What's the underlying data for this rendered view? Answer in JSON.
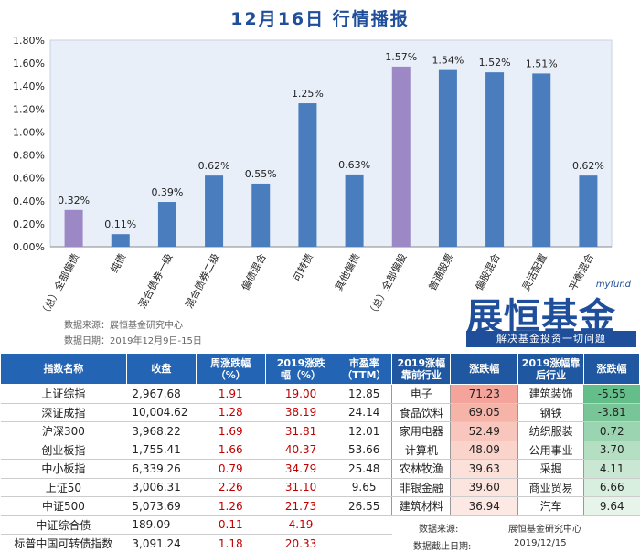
{
  "title": "12月16日  行情播报",
  "chart_data": {
    "type": "bar",
    "categories": [
      "（总）全部偏债",
      "纯债",
      "混合债券一级",
      "混合债券二级",
      "偏债混合",
      "可转债",
      "其他偏债",
      "（总）全部偏股",
      "普通股票",
      "偏股混合",
      "灵活配置",
      "平衡混合"
    ],
    "values": [
      0.32,
      0.11,
      0.39,
      0.62,
      0.55,
      1.25,
      0.63,
      1.57,
      1.54,
      1.52,
      1.51,
      0.62
    ],
    "value_labels": [
      "0.32%",
      "0.11%",
      "0.39%",
      "0.62%",
      "0.55%",
      "1.25%",
      "0.63%",
      "1.57%",
      "1.54%",
      "1.52%",
      "1.51%",
      "0.62%"
    ],
    "highlight_indices": [
      0,
      7
    ],
    "colors": {
      "normal": "#4a7dbe",
      "highlight": "#9c88c4",
      "plot_bg": "#e9eff8"
    },
    "ylim": [
      0,
      1.8
    ],
    "yticks": [
      "0.00%",
      "0.20%",
      "0.40%",
      "0.60%",
      "0.80%",
      "1.00%",
      "1.20%",
      "1.40%",
      "1.60%",
      "1.80%"
    ],
    "xlabel": "",
    "ylabel": "",
    "grid": false
  },
  "source": {
    "line1": "数据来源：展恒基金研究中心",
    "line2": "数据日期：2019年12月9日-15日"
  },
  "logo": {
    "brand": "展恒基金",
    "tag": "myfund",
    "slogan": "解决基金投资一切问题"
  },
  "table": {
    "headers": [
      "指数名称",
      "收盘",
      "周涨跌幅\n（%）",
      "2019涨跌\n幅（%）",
      "市盈率\n（TTM）",
      "2019涨幅\n靠前行业",
      "涨跌幅",
      "2019涨幅靠\n后行业",
      "涨跌幅"
    ],
    "rows": [
      {
        "name": "上证综指",
        "close": "2,967.68",
        "wk": "1.91",
        "yr": "19.00",
        "pe": "12.85",
        "top_ind": "电子",
        "top_val": "71.23",
        "bot_ind": "建筑装饰",
        "bot_val": "-5.55"
      },
      {
        "name": "深证成指",
        "close": "10,004.62",
        "wk": "1.28",
        "yr": "38.19",
        "pe": "24.14",
        "top_ind": "食品饮料",
        "top_val": "69.05",
        "bot_ind": "钢铁",
        "bot_val": "-3.81"
      },
      {
        "name": "沪深300",
        "close": "3,968.22",
        "wk": "1.69",
        "yr": "31.81",
        "pe": "12.01",
        "top_ind": "家用电器",
        "top_val": "52.49",
        "bot_ind": "纺织服装",
        "bot_val": "0.72"
      },
      {
        "name": "创业板指",
        "close": "1,755.41",
        "wk": "1.66",
        "yr": "40.37",
        "pe": "53.66",
        "top_ind": "计算机",
        "top_val": "48.09",
        "bot_ind": "公用事业",
        "bot_val": "3.70"
      },
      {
        "name": "中小板指",
        "close": "6,339.26",
        "wk": "0.79",
        "yr": "34.79",
        "pe": "25.48",
        "top_ind": "农林牧渔",
        "top_val": "39.63",
        "bot_ind": "采掘",
        "bot_val": "4.11"
      },
      {
        "name": "上证50",
        "close": "3,006.31",
        "wk": "2.26",
        "yr": "31.10",
        "pe": "9.65",
        "top_ind": "非银金融",
        "top_val": "39.60",
        "bot_ind": "商业贸易",
        "bot_val": "6.66"
      },
      {
        "name": "中证500",
        "close": "5,073.69",
        "wk": "1.26",
        "yr": "21.73",
        "pe": "26.55",
        "top_ind": "建筑材料",
        "top_val": "36.94",
        "bot_ind": "汽车",
        "bot_val": "9.64"
      },
      {
        "name": "中证综合债",
        "close": "189.09",
        "wk": "0.11",
        "yr": "4.19",
        "pe": ""
      },
      {
        "name": "标普中国可转债指数",
        "close": "3,091.24",
        "wk": "1.18",
        "yr": "20.33",
        "pe": ""
      }
    ],
    "top_colors": [
      "#f4a49a",
      "#f6b3a8",
      "#f8c6bc",
      "#fad3ca",
      "#fbe1d9",
      "#fce5de",
      "#fde9e3"
    ],
    "bot_colors": [
      "#63be8a",
      "#78c697",
      "#9ad4b0",
      "#b5dfc3",
      "#c9e7d3",
      "#d8eede",
      "#e6f4ea"
    ],
    "note_label1": "数据来源:",
    "note_value1": "展恒基金研究中心",
    "note_label2": "数据截止日期:",
    "note_value2": "2019/12/15"
  }
}
